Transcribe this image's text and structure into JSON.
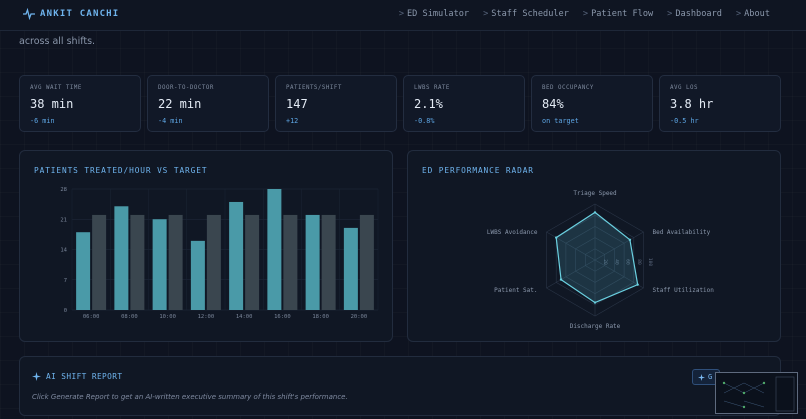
{
  "brand": {
    "name": "ANKIT CANCHI",
    "icon": "pulse-icon"
  },
  "nav": {
    "links": [
      {
        "label": "ED Simulator"
      },
      {
        "label": "Staff Scheduler"
      },
      {
        "label": "Patient Flow"
      },
      {
        "label": "Dashboard"
      },
      {
        "label": "About"
      }
    ],
    "chevron": ">"
  },
  "intro": {
    "text": "across all shifts."
  },
  "kpis": [
    {
      "label": "AVG WAIT TIME",
      "value": "38 min",
      "delta": "-6 min"
    },
    {
      "label": "DOOR-TO-DOCTOR",
      "value": "22 min",
      "delta": "-4 min"
    },
    {
      "label": "PATIENTS/SHIFT",
      "value": "147",
      "delta": "+12"
    },
    {
      "label": "LWBS RATE",
      "value": "2.1%",
      "delta": "-0.8%"
    },
    {
      "label": "BED OCCUPANCY",
      "value": "84%",
      "delta": "on target"
    },
    {
      "label": "AVG LOS",
      "value": "3.8 hr",
      "delta": "-0.5 hr"
    }
  ],
  "colors": {
    "accent": "#6fb4ee",
    "bar_actual": "#4a9aa8",
    "bar_target": "#3a464f",
    "radar_stroke": "#6ad0e0"
  },
  "bar_panel": {
    "title": "PATIENTS TREATED/HOUR VS TARGET"
  },
  "radar_panel": {
    "title": "ED PERFORMANCE RADAR"
  },
  "chart_data": [
    {
      "type": "bar",
      "title": "PATIENTS TREATED/HOUR VS TARGET",
      "categories": [
        "06:00",
        "08:00",
        "10:00",
        "12:00",
        "14:00",
        "16:00",
        "18:00",
        "20:00"
      ],
      "series": [
        {
          "values": [
            18,
            24,
            21,
            16,
            25,
            28,
            22,
            19
          ]
        },
        {
          "values": [
            22,
            22,
            22,
            22,
            22,
            22,
            22,
            22
          ]
        }
      ],
      "yticks": [
        "0",
        "7",
        "14",
        "21",
        "28"
      ],
      "ylim": [
        0,
        28
      ],
      "grid": true
    },
    {
      "type": "radar",
      "title": "ED PERFORMANCE RADAR",
      "axes": [
        "Triage Speed",
        "Bed Availability",
        "Staff Utilization",
        "Discharge Rate",
        "Patient Sat.",
        "LWBS Avoidance"
      ],
      "values": [
        85,
        72,
        88,
        76,
        70,
        80
      ],
      "rings": [
        "20",
        "40",
        "60",
        "80",
        "100"
      ],
      "range": [
        0,
        100
      ]
    }
  ],
  "ai_report": {
    "title": "AI SHIFT REPORT",
    "icon": "sparkle-icon",
    "description": "Click Generate Report to get an AI-written executive summary of this shift's performance.",
    "button_label": "G"
  }
}
